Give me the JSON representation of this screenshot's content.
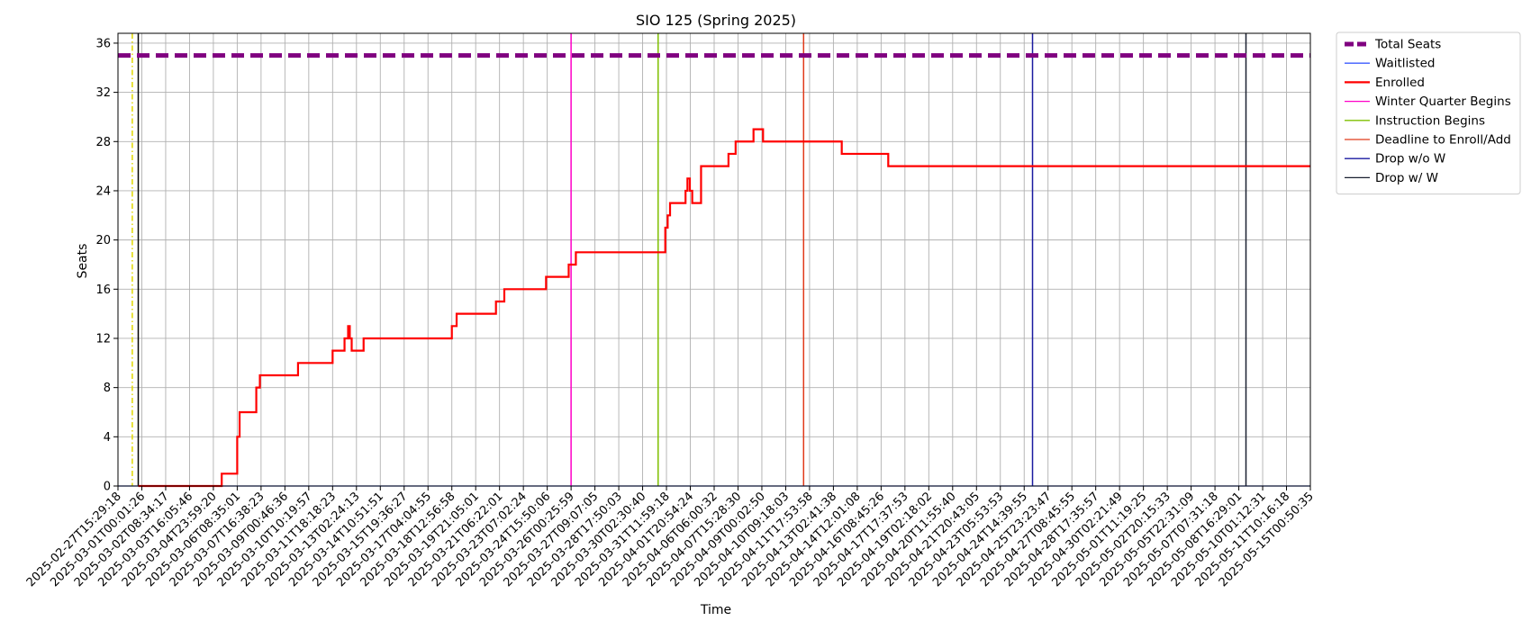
{
  "chart_data": {
    "type": "line",
    "title": "SIO 125 (Spring 2025)",
    "xlabel": "Time",
    "ylabel": "Seats",
    "ylim": [
      0,
      36.8
    ],
    "yticks": [
      0,
      4,
      8,
      12,
      16,
      20,
      24,
      28,
      32,
      36
    ],
    "grid": true,
    "legend_position": "outside-right-top",
    "x_categories": [
      "2025-02-27T15:29:18",
      "2025-03-01T00:01:26",
      "2025-03-02T08:34:17",
      "2025-03-03T16:05:46",
      "2025-03-04T23:59:20",
      "2025-03-06T08:35:01",
      "2025-03-07T16:38:23",
      "2025-03-09T00:46:36",
      "2025-03-10T10:19:57",
      "2025-03-11T18:18:23",
      "2025-03-13T02:24:13",
      "2025-03-14T10:51:51",
      "2025-03-15T19:36:27",
      "2025-03-17T04:04:55",
      "2025-03-18T12:56:58",
      "2025-03-19T21:05:01",
      "2025-03-21T06:22:01",
      "2025-03-23T07:02:24",
      "2025-03-24T15:50:06",
      "2025-03-26T00:25:59",
      "2025-03-27T09:07:05",
      "2025-03-28T17:50:03",
      "2025-03-30T02:30:40",
      "2025-03-31T11:59:18",
      "2025-04-01T20:54:24",
      "2025-04-06T06:00:32",
      "2025-04-07T15:28:30",
      "2025-04-09T00:02:50",
      "2025-04-10T09:18:03",
      "2025-04-11T17:53:58",
      "2025-04-13T02:41:38",
      "2025-04-14T12:01:08",
      "2025-04-16T08:45:26",
      "2025-04-17T17:37:53",
      "2025-04-19T02:18:02",
      "2025-04-20T11:55:40",
      "2025-04-21T20:43:05",
      "2025-04-23T05:53:53",
      "2025-04-24T14:39:55",
      "2025-04-25T23:23:47",
      "2025-04-27T08:45:55",
      "2025-04-28T17:35:57",
      "2025-04-30T02:21:49",
      "2025-05-01T11:19:25",
      "2025-05-02T20:15:33",
      "2025-05-05T22:31:09",
      "2025-05-07T07:31:18",
      "2025-05-08T16:29:01",
      "2025-05-10T01:12:31",
      "2025-05-11T10:16:18",
      "2025-05-15T00:50:35"
    ],
    "series": [
      {
        "name": "Total Seats",
        "color": "#800080",
        "style": "dashed-thick",
        "points": [
          [
            0,
            35
          ],
          [
            50,
            35
          ]
        ]
      },
      {
        "name": "Waitlisted",
        "color": "#3b5bff",
        "style": "solid-thin",
        "points": [
          [
            0,
            0
          ],
          [
            50,
            0
          ]
        ]
      },
      {
        "name": "Enrolled",
        "color": "#ff0000",
        "style": "solid-thick",
        "points": [
          [
            0.85,
            0
          ],
          [
            4.35,
            0
          ],
          [
            4.35,
            1
          ],
          [
            5.0,
            1
          ],
          [
            5.0,
            4
          ],
          [
            5.1,
            4
          ],
          [
            5.1,
            6
          ],
          [
            5.8,
            6
          ],
          [
            5.8,
            8
          ],
          [
            5.95,
            8
          ],
          [
            5.95,
            9
          ],
          [
            7.55,
            9
          ],
          [
            7.55,
            10
          ],
          [
            9.0,
            10
          ],
          [
            9.0,
            11
          ],
          [
            9.5,
            11
          ],
          [
            9.5,
            12
          ],
          [
            9.65,
            12
          ],
          [
            9.65,
            13
          ],
          [
            9.72,
            13
          ],
          [
            9.72,
            12
          ],
          [
            9.8,
            12
          ],
          [
            9.8,
            11
          ],
          [
            10.3,
            11
          ],
          [
            10.3,
            12
          ],
          [
            14.0,
            12
          ],
          [
            14.0,
            13
          ],
          [
            14.2,
            13
          ],
          [
            14.2,
            14
          ],
          [
            15.85,
            14
          ],
          [
            15.85,
            15
          ],
          [
            16.2,
            15
          ],
          [
            16.2,
            16
          ],
          [
            17.95,
            16
          ],
          [
            17.95,
            17
          ],
          [
            18.9,
            17
          ],
          [
            18.9,
            18
          ],
          [
            19.2,
            18
          ],
          [
            19.2,
            19
          ],
          [
            22.95,
            19
          ],
          [
            22.95,
            21
          ],
          [
            23.05,
            21
          ],
          [
            23.05,
            22
          ],
          [
            23.15,
            22
          ],
          [
            23.15,
            23
          ],
          [
            23.8,
            23
          ],
          [
            23.8,
            24
          ],
          [
            23.88,
            24
          ],
          [
            23.88,
            25
          ],
          [
            23.98,
            25
          ],
          [
            23.98,
            24
          ],
          [
            24.08,
            24
          ],
          [
            24.08,
            23
          ],
          [
            24.45,
            23
          ],
          [
            24.45,
            26
          ],
          [
            25.6,
            26
          ],
          [
            25.6,
            27
          ],
          [
            25.9,
            27
          ],
          [
            25.9,
            28
          ],
          [
            26.65,
            28
          ],
          [
            26.65,
            29
          ],
          [
            27.05,
            29
          ],
          [
            27.05,
            28
          ],
          [
            30.35,
            28
          ],
          [
            30.35,
            27
          ],
          [
            32.3,
            27
          ],
          [
            32.3,
            26
          ],
          [
            50,
            26
          ]
        ]
      }
    ],
    "vertical_lines": [
      {
        "name": "",
        "color": "#e0d800",
        "style": "dashdot",
        "x": 0.6
      },
      {
        "name": "",
        "color": "#000000",
        "style": "solid",
        "x": 0.85
      },
      {
        "name": "Winter Quarter Begins",
        "color": "#ff00c8",
        "style": "solid",
        "x": 19.0
      },
      {
        "name": "Instruction Begins",
        "color": "#7fbf00",
        "style": "solid",
        "x": 22.65
      },
      {
        "name": "Deadline to Enroll/Add",
        "color": "#e03a1a",
        "style": "solid",
        "x": 28.75
      },
      {
        "name": "Drop w/o W",
        "color": "#1a1aa0",
        "style": "solid",
        "x": 38.35
      },
      {
        "name": "Drop w/ W",
        "color": "#1a2030",
        "style": "solid",
        "x": 47.3
      }
    ],
    "legend": [
      {
        "label": "Total Seats",
        "color": "#800080",
        "style": "dashed-thick"
      },
      {
        "label": "Waitlisted",
        "color": "#3b5bff",
        "style": "solid-thin"
      },
      {
        "label": "Enrolled",
        "color": "#ff0000",
        "style": "solid-thick"
      },
      {
        "label": "Winter Quarter Begins",
        "color": "#ff00c8",
        "style": "solid-thin"
      },
      {
        "label": "Instruction Begins",
        "color": "#7fbf00",
        "style": "solid-thin"
      },
      {
        "label": "Deadline to Enroll/Add",
        "color": "#e03a1a",
        "style": "solid-thin"
      },
      {
        "label": "Drop w/o W",
        "color": "#1a1aa0",
        "style": "solid-thin"
      },
      {
        "label": "Drop w/ W",
        "color": "#1a2030",
        "style": "solid-thin"
      }
    ]
  }
}
